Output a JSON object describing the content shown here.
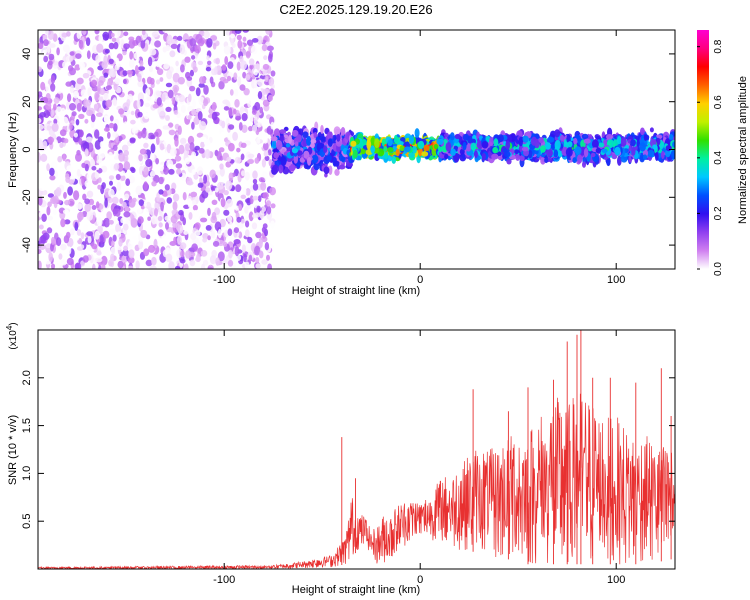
{
  "figure": {
    "title": "C2E2.2025.129.19.20.E26"
  },
  "colors": {
    "snr_line": "#e83030",
    "frame": "#000000",
    "scatter_low": "#e8d8f8",
    "scatter_mid": "#7a30e8",
    "scatter_deep": "#5a10d0"
  },
  "chart_data": [
    {
      "type": "heatmap",
      "xlabel": "Height of straight line (km)",
      "ylabel": "Frequency (Hz)",
      "xlim": [
        -195,
        130
      ],
      "ylim": [
        -50,
        50
      ],
      "xticks": [
        -100,
        0,
        100
      ],
      "yticks": [
        -40,
        -20,
        0,
        20,
        40
      ],
      "xtick_labels": [
        "-100",
        "0",
        "100"
      ],
      "ytick_labels": [
        "-40",
        "-20",
        "0",
        "20",
        "40"
      ],
      "grid": false,
      "colorbar": {
        "label": "Normalized spectral amplitude",
        "range": [
          0,
          0.86
        ],
        "ticks": [
          0,
          0.2,
          0.4,
          0.6,
          0.8
        ],
        "tick_labels": [
          "0.0",
          "0.2",
          "0.4",
          "0.6",
          "0.8"
        ],
        "colormap": [
          "#ffffff",
          "#d080f0",
          "#9040f0",
          "#3010f0",
          "#0050ff",
          "#00c8ff",
          "#00f0a0",
          "#30e000",
          "#c0f000",
          "#ffd000",
          "#ff6000",
          "#ff0000",
          "#ff0080",
          "#ff00d0"
        ]
      },
      "regions": [
        {
          "x_range": [
            -195,
            -75
          ],
          "freq_range": [
            -50,
            50
          ],
          "amplitude_range": [
            0.0,
            0.15
          ],
          "description": "broadband noise"
        },
        {
          "x_range": [
            -75,
            -35
          ],
          "freq_center": 0,
          "freq_halfwidth": 8,
          "amplitude_range": [
            0.05,
            0.35
          ]
        },
        {
          "x_range": [
            -35,
            10
          ],
          "freq_center": 1,
          "freq_halfwidth": 4,
          "amplitude_range": [
            0.2,
            0.8
          ]
        },
        {
          "x_range": [
            10,
            130
          ],
          "freq_center": 1,
          "freq_halfwidth": 5,
          "amplitude_range": [
            0.1,
            0.45
          ]
        }
      ]
    },
    {
      "type": "line",
      "xlabel": "Height of straight line (km)",
      "ylabel": "SNR (10 * v/v)",
      "y_multiplier_label": "(x10",
      "y_multiplier_exponent": "4",
      "y_multiplier_close": ")",
      "xlim": [
        -195,
        130
      ],
      "ylim": [
        0,
        2.5
      ],
      "xticks": [
        -100,
        0,
        100
      ],
      "yticks": [
        0.5,
        1.0,
        1.5,
        2.0
      ],
      "xtick_labels": [
        "-100",
        "0",
        "100"
      ],
      "ytick_labels": [
        "0.5",
        "1.0",
        "1.5",
        "2.0"
      ],
      "grid": false,
      "series": [
        {
          "color": "#e83030",
          "envelope": {
            "x": [
              -195,
              -130,
              -75,
              -60,
              -45,
              -38,
              -35,
              -32,
              -28,
              -25,
              -22,
              -20,
              -15,
              -10,
              -5,
              0,
              5,
              10,
              15,
              20,
              25,
              30,
              35,
              40,
              45,
              50,
              55,
              60,
              65,
              70,
              75,
              80,
              85,
              90,
              95,
              100,
              105,
              110,
              115,
              120,
              125,
              130
            ],
            "lower": [
              0.0,
              0.0,
              0.0,
              0.01,
              0.02,
              0.05,
              0.1,
              0.2,
              0.25,
              0.15,
              0.05,
              0.05,
              0.1,
              0.2,
              0.3,
              0.35,
              0.3,
              0.3,
              0.25,
              0.2,
              0.2,
              0.15,
              0.15,
              0.1,
              0.1,
              0.05,
              0.05,
              0.05,
              0.05,
              0.05,
              0.05,
              0.05,
              0.05,
              0.05,
              0.05,
              0.05,
              0.05,
              0.05,
              0.1,
              0.05,
              0.1,
              0.1
            ],
            "upper": [
              0.02,
              0.03,
              0.04,
              0.08,
              0.15,
              0.35,
              0.8,
              0.6,
              0.55,
              0.4,
              0.45,
              0.55,
              0.6,
              0.7,
              0.75,
              0.7,
              0.8,
              0.95,
              1.0,
              1.1,
              1.2,
              1.3,
              1.25,
              1.3,
              1.4,
              1.5,
              1.45,
              1.6,
              1.7,
              1.8,
              1.7,
              1.9,
              1.8,
              1.7,
              1.6,
              1.6,
              1.5,
              1.4,
              1.4,
              1.35,
              1.3,
              1.3
            ]
          },
          "peaks": [
            {
              "x": -40,
              "y": 1.38
            },
            {
              "x": -33,
              "y": 0.95
            },
            {
              "x": 27,
              "y": 1.88
            },
            {
              "x": 45,
              "y": 1.65
            },
            {
              "x": 55,
              "y": 1.9
            },
            {
              "x": 68,
              "y": 1.98
            },
            {
              "x": 75,
              "y": 2.38
            },
            {
              "x": 80,
              "y": 2.45
            },
            {
              "x": 82,
              "y": 2.5
            },
            {
              "x": 88,
              "y": 2.0
            },
            {
              "x": 97,
              "y": 2.0
            },
            {
              "x": 110,
              "y": 1.95
            },
            {
              "x": 123,
              "y": 2.1
            },
            {
              "x": 128,
              "y": 1.6
            }
          ]
        }
      ]
    }
  ]
}
